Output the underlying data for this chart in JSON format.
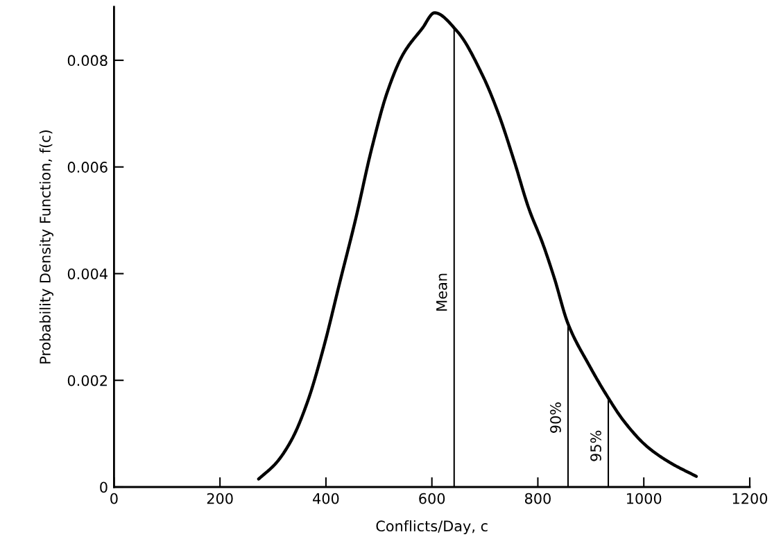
{
  "chart_data": {
    "type": "line",
    "xlabel": "Conflicts/Day, c",
    "ylabel": "Probability Density Function, f(c)",
    "series": [
      {
        "color": "#000000",
        "x": [
          273,
          306,
          336,
          366,
          396,
          426,
          456,
          486,
          516,
          546,
          582,
          605,
          648,
          696,
          726,
          756,
          783,
          809,
          831,
          857,
          897,
          933,
          962,
          1006,
          1049,
          1099
        ],
        "values": [
          0.00015,
          0.00045,
          0.0009,
          0.00162,
          0.00263,
          0.00383,
          0.00502,
          0.00633,
          0.00741,
          0.00812,
          0.0086,
          0.00889,
          0.00854,
          0.00771,
          0.00699,
          0.00609,
          0.00522,
          0.00457,
          0.00392,
          0.00306,
          0.00228,
          0.00167,
          0.00124,
          0.00076,
          0.00046,
          0.0002
        ]
      }
    ],
    "ref_lines": [
      {
        "axis": "x",
        "value": 642
      },
      {
        "axis": "x",
        "value": 857
      },
      {
        "axis": "x",
        "value": 933
      }
    ],
    "annotations": [
      {
        "text": "Mean",
        "x": 642,
        "y": 0.00365
      },
      {
        "text": "90%",
        "x": 857,
        "y": 0.0013
      },
      {
        "text": "95%",
        "x": 933,
        "y": 0.00077
      }
    ],
    "xlim": [
      0,
      1200
    ],
    "xticks": [
      0,
      200,
      400,
      600,
      800,
      1000,
      1200
    ],
    "ylim": [
      0,
      0.009
    ],
    "yticks": [
      0,
      0.002,
      0.004,
      0.006,
      0.008
    ],
    "grid": false,
    "marker": "none",
    "line_style": "solid"
  }
}
